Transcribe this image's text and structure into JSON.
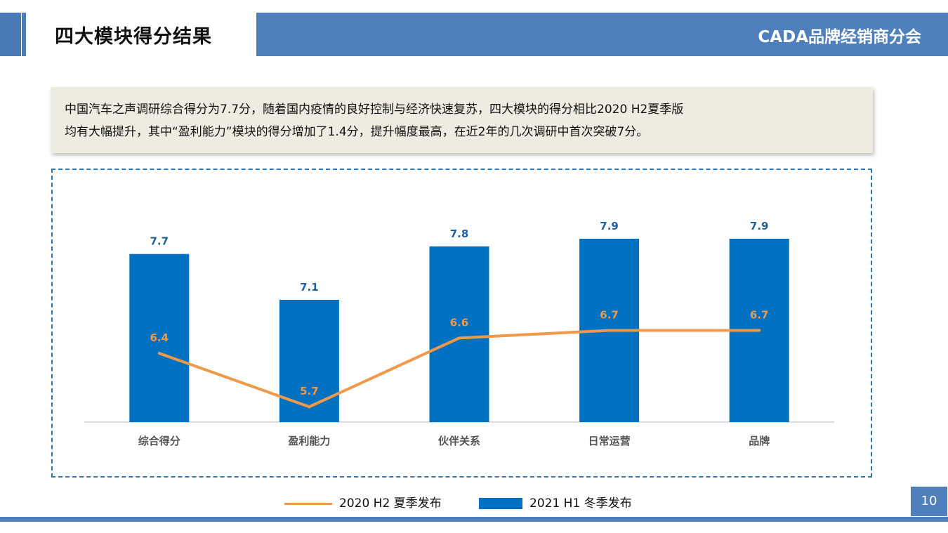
{
  "header": {
    "title": "四大模块得分结果",
    "brand": "CADA品牌经销商分会"
  },
  "summary": {
    "line1": "中国汽车之声调研综合得分为7.7分，随着国内疫情的良好控制与经济快速复苏，四大模块的得分相比2020  H2夏季版",
    "line2": "均有大幅提升，其中“盈利能力”模块的得分增加了1.4分，提升幅度最高，在近2年的几次调研中首次突破7分。"
  },
  "colors": {
    "bar": "#0070c0",
    "line": "#f0994a",
    "header": "#4f80bd",
    "bar_label": "#1f5f9e",
    "line_label": "#f0994a"
  },
  "chart_data": {
    "type": "bar",
    "categories": [
      "综合得分",
      "盈利能力",
      "伙伴关系",
      "日常运营",
      "品牌"
    ],
    "series": [
      {
        "name": "2021 H1 冬季发布",
        "type": "bar",
        "values": [
          7.7,
          7.1,
          7.8,
          7.9,
          7.9
        ]
      },
      {
        "name": "2020 H2 夏季发布",
        "type": "line",
        "values": [
          6.4,
          5.7,
          6.6,
          6.7,
          6.7
        ]
      }
    ],
    "ylim": [
      5.5,
      8.35
    ],
    "grid": false,
    "legend_position": "bottom",
    "title": "",
    "xlabel": "",
    "ylabel": ""
  },
  "legend": {
    "line_label": "2020 H2 夏季发布",
    "bar_label": "2021 H1 冬季发布"
  },
  "page_number": "10"
}
